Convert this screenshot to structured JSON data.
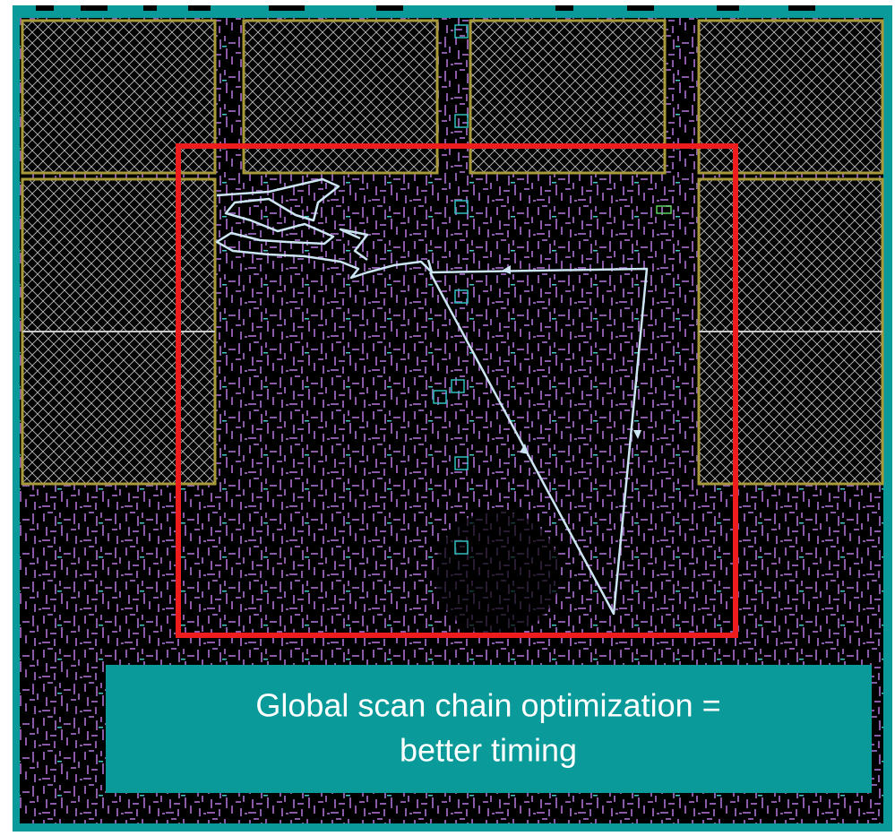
{
  "caption": {
    "lines": [
      "Global scan chain optimization =",
      "better timing"
    ]
  }
}
